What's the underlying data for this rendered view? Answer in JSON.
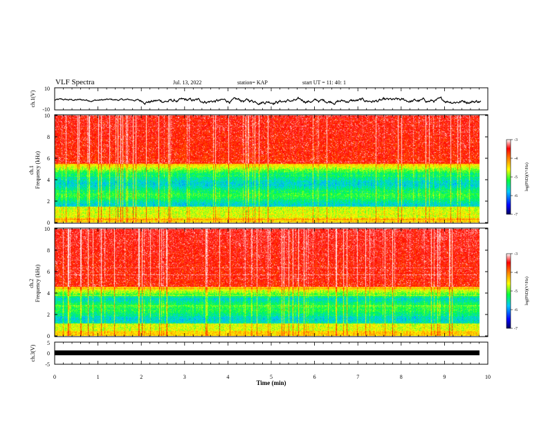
{
  "header": {
    "title": "VLF Spectra",
    "date": "Jul. 13, 2022",
    "station": "station= KAP",
    "start": "start UT =  11: 40: 1"
  },
  "chart_data": [
    {
      "type": "line",
      "panel": "ch1-waveform",
      "ylabel": "ch.1(V)",
      "ylim": [
        -10,
        10
      ],
      "yticks": [
        "10",
        "-10"
      ],
      "x_range_min": [
        0,
        9.85
      ],
      "description_values": {
        "approx_mean": -1.5,
        "approx_amplitude": 3
      },
      "line_color": "#000000"
    },
    {
      "type": "heatmap",
      "panel": "ch1-spectrogram",
      "ylabel": "ch.1\nFrequency (kHz)",
      "ylabel_line1": "ch.1",
      "ylabel_line2": "Frequency (kHz)",
      "ylim": [
        0,
        10
      ],
      "yticks": [
        "0",
        "2",
        "4",
        "6",
        "8",
        "10"
      ],
      "x_range_min": [
        0,
        9.85
      ],
      "low_power_band_khz": [
        1.5,
        4.5
      ],
      "colorbar": {
        "label": "log(PSD)(V²/Hz)",
        "range": [
          -7,
          -3
        ],
        "ticks": [
          "-3",
          "-4",
          "-5",
          "-6",
          "-7"
        ]
      }
    },
    {
      "type": "heatmap",
      "panel": "ch2-spectrogram",
      "ylabel_line1": "ch.2",
      "ylabel_line2": "Frequency (kHz)",
      "ylim": [
        0,
        10
      ],
      "yticks": [
        "0",
        "2",
        "4",
        "6",
        "8",
        "10"
      ],
      "x_range_min": [
        0,
        9.85
      ],
      "low_power_band_khz": [
        1.2,
        3.6
      ],
      "colorbar": {
        "label": "log(PSD)(V²/Hz)",
        "range": [
          -7,
          -3
        ],
        "ticks": [
          "-3",
          "-4",
          "-5",
          "-6",
          "-7"
        ]
      }
    },
    {
      "type": "line",
      "panel": "ch3-waveform",
      "ylabel": "ch.3(V)",
      "ylim": [
        -5,
        5
      ],
      "yticks": [
        "5",
        "0",
        "-5"
      ],
      "x_range_min": [
        0,
        9.85
      ],
      "approx_value": -0.3,
      "xlabel": "Time (min)",
      "xticks": [
        "0",
        "1",
        "2",
        "3",
        "4",
        "5",
        "6",
        "7",
        "8",
        "9",
        "10"
      ],
      "xlim": [
        0,
        10
      ]
    }
  ],
  "colors": {
    "colormap": [
      "#00008b",
      "#0000ff",
      "#00ffff",
      "#00ff00",
      "#ffff00",
      "#ff8000",
      "#ff0000",
      "#ffffff"
    ]
  }
}
